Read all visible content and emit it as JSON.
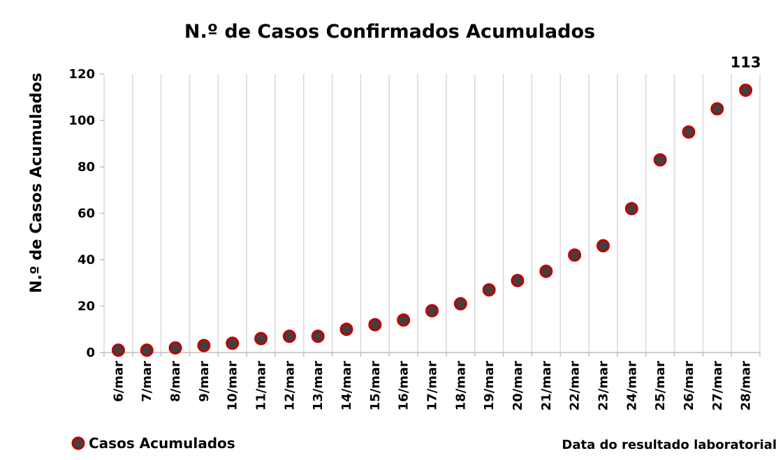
{
  "chart_data": {
    "type": "scatter",
    "title": "N.º de Casos Confirmados Acumulados",
    "ylabel": "N.º de Casos Acumulados",
    "xlabel": "Data do resultado laboratorial",
    "ylim": [
      0,
      120
    ],
    "yticks": [
      0,
      20,
      40,
      60,
      80,
      100,
      120
    ],
    "grid": "vertical",
    "legend_position": "bottom-left",
    "categories": [
      "6/mar",
      "7/mar",
      "8/mar",
      "9/mar",
      "10/mar",
      "11/mar",
      "12/mar",
      "13/mar",
      "14/mar",
      "15/mar",
      "16/mar",
      "17/mar",
      "18/mar",
      "19/mar",
      "20/mar",
      "21/mar",
      "22/mar",
      "23/mar",
      "24/mar",
      "25/mar",
      "26/mar",
      "27/mar",
      "28/mar"
    ],
    "series": [
      {
        "name": "Casos Acumulados",
        "values": [
          1,
          1,
          2,
          3,
          4,
          6,
          7,
          7,
          10,
          12,
          14,
          18,
          21,
          27,
          31,
          35,
          42,
          46,
          62,
          83,
          95,
          105,
          113
        ],
        "marker_fill": "#404040",
        "marker_stroke": "#c00000"
      }
    ],
    "annotations": [
      {
        "category": "28/mar",
        "text": "113"
      }
    ]
  }
}
